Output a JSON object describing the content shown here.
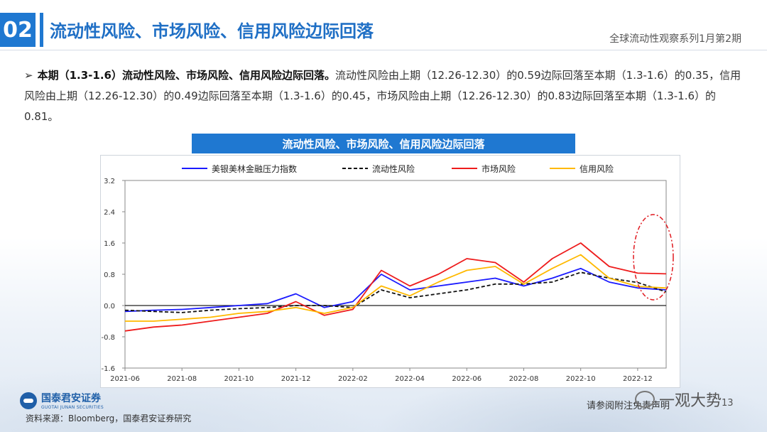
{
  "header": {
    "section_number": "02",
    "title": "流动性风险、市场风险、信用风险边际回落",
    "series": "全球流动性观察系列1月第2期"
  },
  "summary": {
    "bullet": "➢",
    "lead": "本期（1.3-1.6）流动性风险、市场风险、信用风险边际回落。",
    "body": "流动性风险由上期（12.26-12.30）的0.59边际回落至本期（1.3-1.6）的0.35，信用风险由上期（12.26-12.30）的0.49边际回落至本期（1.3-1.6）的0.45，市场风险由上期（12.26-12.30）的0.83边际回落至本期（1.3-1.6）的0.81。"
  },
  "chart_data": {
    "type": "line",
    "title": "流动性风险、市场风险、信用风险边际回落",
    "ylim": [
      -1.6,
      3.2
    ],
    "yticks": [
      "3.2",
      "2.4",
      "1.6",
      "0.8",
      "0.0",
      "-0.8",
      "-1.6"
    ],
    "xticks": [
      "2021-06",
      "2021-08",
      "2021-10",
      "2021-12",
      "2022-02",
      "2022-04",
      "2022-06",
      "2022-08",
      "2022-10",
      "2022-12"
    ],
    "x": [
      "2021-06",
      "2021-07",
      "2021-08",
      "2021-09",
      "2021-10",
      "2021-11",
      "2021-12",
      "2022-01",
      "2022-02",
      "2022-03",
      "2022-04",
      "2022-05",
      "2022-06",
      "2022-07",
      "2022-08",
      "2022-09",
      "2022-10",
      "2022-11",
      "2022-12",
      "2023-01"
    ],
    "legend_position": "top",
    "series": [
      {
        "name": "美银美林金融压力指数",
        "color": "#1a1aff",
        "dash": "solid",
        "values": [
          -0.15,
          -0.12,
          -0.1,
          -0.05,
          0.0,
          0.05,
          0.3,
          -0.05,
          0.1,
          0.8,
          0.4,
          0.5,
          0.6,
          0.7,
          0.5,
          0.7,
          0.95,
          0.6,
          0.45,
          0.4
        ]
      },
      {
        "name": "流动性风险",
        "color": "#111111",
        "dash": "dashed",
        "values": [
          -0.12,
          -0.15,
          -0.18,
          -0.12,
          -0.08,
          -0.05,
          0.0,
          0.0,
          -0.05,
          0.4,
          0.2,
          0.3,
          0.4,
          0.55,
          0.55,
          0.6,
          0.85,
          0.7,
          0.59,
          0.35
        ]
      },
      {
        "name": "市场风险",
        "color": "#ee1c1c",
        "dash": "solid",
        "values": [
          -0.65,
          -0.55,
          -0.5,
          -0.4,
          -0.3,
          -0.2,
          0.1,
          -0.25,
          -0.1,
          0.9,
          0.5,
          0.8,
          1.2,
          1.1,
          0.6,
          1.2,
          1.6,
          1.0,
          0.83,
          0.81
        ]
      },
      {
        "name": "信用风险",
        "color": "#ffb900",
        "dash": "solid",
        "values": [
          -0.4,
          -0.4,
          -0.35,
          -0.3,
          -0.2,
          -0.15,
          -0.05,
          -0.2,
          -0.05,
          0.5,
          0.25,
          0.6,
          0.9,
          1.0,
          0.55,
          0.95,
          1.3,
          0.7,
          0.49,
          0.45
        ]
      }
    ]
  },
  "footer": {
    "logo_cn": "国泰君安证券",
    "logo_en": "GUOTAI JUNAN SECURITIES",
    "source": "资料来源：Bloomberg，国泰君安证券研究",
    "disclaimer": "请参阅附注免责声明",
    "watermark": "一观大势",
    "page_number": "13"
  },
  "colors": {
    "accent": "#1f78d1",
    "highlight_circle": "#e0191f"
  }
}
